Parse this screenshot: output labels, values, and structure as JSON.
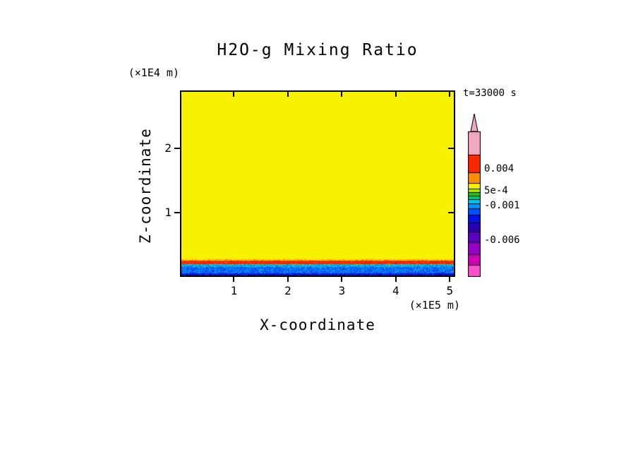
{
  "title": "H2O-g Mixing Ratio",
  "time_label": "t=33000 s",
  "axes": {
    "y_label": "Z-coordinate",
    "y_unit": "(×1E4 m)",
    "x_label": "X-coordinate",
    "x_unit": "(×1E5 m)",
    "x_ticks": [
      "1",
      "2",
      "3",
      "4",
      "5"
    ],
    "y_ticks": [
      "1",
      "2"
    ]
  },
  "colorbar": {
    "labels": [
      "0.004",
      "5e-4",
      "-0.001",
      "-0.006"
    ],
    "arrow_color": "#f2a8bc",
    "segments": [
      {
        "color": "#f2a8bc",
        "h": 32
      },
      {
        "color": "#fa2800",
        "h": 25
      },
      {
        "color": "#ff8c00",
        "h": 15
      },
      {
        "color": "#f8f000",
        "h": 8
      },
      {
        "color": "#b4e600",
        "h": 5
      },
      {
        "color": "#28c800",
        "h": 5
      },
      {
        "color": "#00c87d",
        "h": 5
      },
      {
        "color": "#00c8f0",
        "h": 6
      },
      {
        "color": "#0096ff",
        "h": 7
      },
      {
        "color": "#0050ff",
        "h": 9
      },
      {
        "color": "#0014e6",
        "h": 11
      },
      {
        "color": "#2800b4",
        "h": 13
      },
      {
        "color": "#5a00be",
        "h": 15
      },
      {
        "color": "#9600c8",
        "h": 17
      },
      {
        "color": "#d200b4",
        "h": 15
      },
      {
        "color": "#ff50c8",
        "h": 16
      }
    ]
  },
  "chart_data": {
    "type": "heatmap",
    "title": "H2O-g Mixing Ratio",
    "xlabel": "X-coordinate",
    "ylabel": "Z-coordinate",
    "x_unit": "(×1E5 m)",
    "y_unit": "(×1E4 m)",
    "time": "t=33000 s",
    "x_range": [
      0,
      5.1
    ],
    "y_range": [
      0,
      2.9
    ],
    "x_ticks": [
      1,
      2,
      3,
      4,
      5
    ],
    "y_ticks": [
      1,
      2
    ],
    "colorbar_tick_labels": [
      "0.004",
      "5e-4",
      "-0.001",
      "-0.006"
    ],
    "field_color": "#f7f200",
    "field_description": "Mixing ratio field is uniform (yellow, between 5e-4 and 0.004) over nearly the whole domain; a thin high-value red/orange stripe (> 0.004) lies just above a shallow noisy near-surface layer of negative values (blue/cyan, roughly -0.001 to -0.006) at the bottom boundary.",
    "bands": [
      {
        "z_frac_from": 0.09,
        "z_frac_to": 1.0,
        "value": "5e-4 to 0.004",
        "color": "#f7f200"
      },
      {
        "z_frac_from": 0.065,
        "z_frac_to": 0.09,
        "value": "> 0.004",
        "color": "#fa1e00"
      },
      {
        "z_frac_from": 0.0,
        "z_frac_to": 0.065,
        "value": "-0.001 to -0.006 (noisy)",
        "color": "#0050ff"
      }
    ],
    "noise_bands_bottom_up": [
      {
        "h": 3,
        "colors": [
          "#0000b4",
          "#0020e0",
          "#2a00b4",
          "#0040ff",
          "#0000d2"
        ]
      },
      {
        "h": 9,
        "colors": [
          "#0050ff",
          "#0078ff",
          "#00a0f0",
          "#0040ff",
          "#00c8f0",
          "#0028dc",
          "#0064ff"
        ]
      },
      {
        "h": 3,
        "colors": [
          "#00b4f0",
          "#0090ff",
          "#00d8f0",
          "#0064ff",
          "#00c8c8"
        ]
      },
      {
        "h": 1,
        "colors": [
          "#00c8f0",
          "#28c800",
          "#0096ff",
          "#ffb400"
        ]
      },
      {
        "h": 5,
        "colors": [
          "#fa1e00",
          "#ff3200",
          "#e61400",
          "#ff5000",
          "#fa1e00",
          "#fa1e00"
        ]
      },
      {
        "h": 2,
        "colors": [
          "#ff9600",
          "#ffc800",
          "#f7f200",
          "#ff6e00",
          "#f7f200"
        ]
      }
    ]
  }
}
